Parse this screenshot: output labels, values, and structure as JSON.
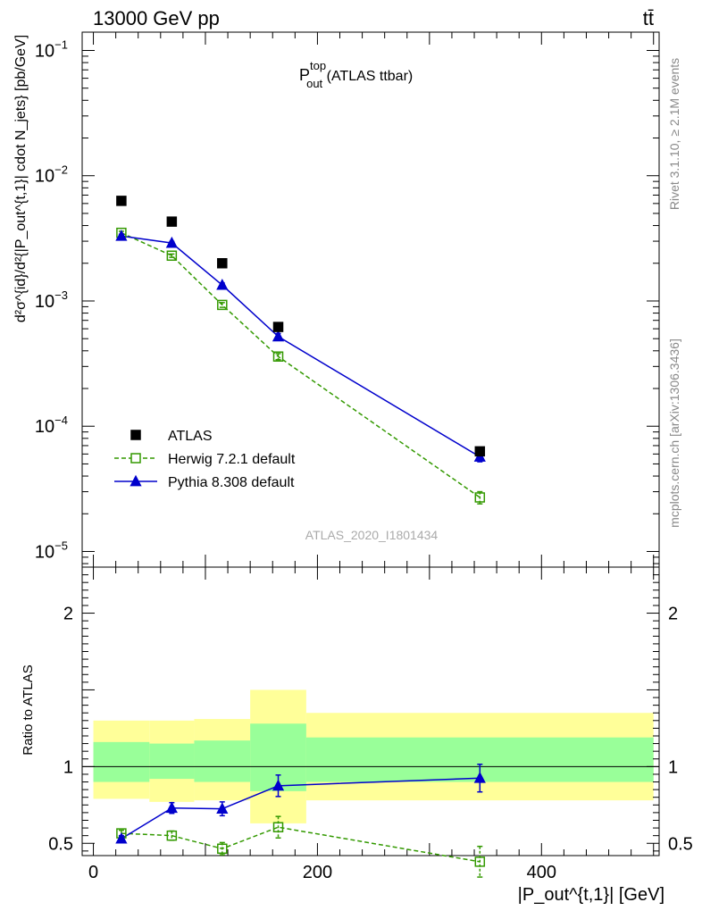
{
  "header": {
    "left": "13000 GeV pp",
    "right": "tt̄"
  },
  "side_labels": {
    "rivet": "Rivet 3.1.10, ≥ 2.1M events",
    "mcplots": "mcplots.cern.ch [arXiv:1306.3436]"
  },
  "watermark": "ATLAS_2020_I1801434",
  "main_title": {
    "base": "P",
    "sup": "top",
    "sub": "out",
    "suffix": " (ATLAS ttbar)"
  },
  "axes": {
    "ylabel_top": "d²σ^{id}/d²{|P_out^{t,1}| cdot N_jets} [pb/GeV]",
    "ylabel_ratio": "Ratio to ATLAS",
    "xlabel": "|P_out^{t,1}| [GeV]"
  },
  "legend": [
    {
      "label": "ATLAS",
      "color": "#000000",
      "marker": "square-filled"
    },
    {
      "label": "Herwig 7.2.1 default",
      "color": "#339900",
      "marker": "square-open",
      "line": "dashed"
    },
    {
      "label": "Pythia 8.308 default",
      "color": "#0000cc",
      "marker": "triangle-filled",
      "line": "solid"
    }
  ],
  "chart_data": [
    {
      "type": "scatter",
      "yscale": "log",
      "xlim": [
        -10,
        505
      ],
      "ylim": [
        7.5e-06,
        0.14
      ],
      "x": [
        25,
        70,
        115,
        165,
        345
      ],
      "series": [
        {
          "name": "ATLAS",
          "values": [
            0.0063,
            0.0043,
            0.002,
            0.00062,
            6.3e-05
          ]
        },
        {
          "name": "Herwig 7.2.1 default",
          "values": [
            0.0035,
            0.0023,
            0.00093,
            0.00036,
            2.7e-05
          ],
          "errors": [
            0.0001,
            7e-05,
            4e-05,
            2e-05,
            3e-06
          ]
        },
        {
          "name": "Pythia 8.308 default",
          "values": [
            0.0033,
            0.0029,
            0.00134,
            0.00052,
            5.7e-05
          ],
          "errors": [
            0.0001,
            8e-05,
            5e-05,
            3e-05,
            5e-06
          ]
        }
      ],
      "yticks": [
        {
          "v": 0.1,
          "base": "10",
          "exp": "−1"
        },
        {
          "v": 0.01,
          "base": "10",
          "exp": "−2"
        },
        {
          "v": 0.001,
          "base": "10",
          "exp": "−3"
        },
        {
          "v": 0.0001,
          "base": "10",
          "exp": "−4"
        },
        {
          "v": 1e-05,
          "base": "10",
          "exp": "−5"
        }
      ]
    },
    {
      "type": "scatter",
      "xlim": [
        -10,
        505
      ],
      "ylim": [
        0.42,
        2.3
      ],
      "x": [
        25,
        70,
        115,
        165,
        345
      ],
      "xticks": [
        0,
        200,
        400
      ],
      "yticks": [
        0.5,
        1,
        2
      ],
      "bands": [
        {
          "x0": 0,
          "x1": 50,
          "outer": [
            0.79,
            1.3
          ],
          "inner": [
            0.9,
            1.16
          ]
        },
        {
          "x0": 50,
          "x1": 90,
          "outer": [
            0.77,
            1.3
          ],
          "inner": [
            0.92,
            1.15
          ]
        },
        {
          "x0": 90,
          "x1": 140,
          "outer": [
            0.78,
            1.31
          ],
          "inner": [
            0.9,
            1.17
          ]
        },
        {
          "x0": 140,
          "x1": 190,
          "outer": [
            0.63,
            1.5
          ],
          "inner": [
            0.84,
            1.28
          ]
        },
        {
          "x0": 190,
          "x1": 500,
          "outer": [
            0.78,
            1.35
          ],
          "inner": [
            0.9,
            1.19
          ]
        }
      ],
      "series": [
        {
          "name": "Herwig 7.2.1 default",
          "values": [
            0.565,
            0.55,
            0.465,
            0.605,
            0.38
          ],
          "errors": [
            0.02,
            0.03,
            0.04,
            0.07,
            0.1
          ]
        },
        {
          "name": "Pythia 8.308 default",
          "values": [
            0.53,
            0.73,
            0.725,
            0.875,
            0.925
          ],
          "errors": [
            0.02,
            0.035,
            0.045,
            0.07,
            0.09
          ]
        }
      ]
    }
  ]
}
